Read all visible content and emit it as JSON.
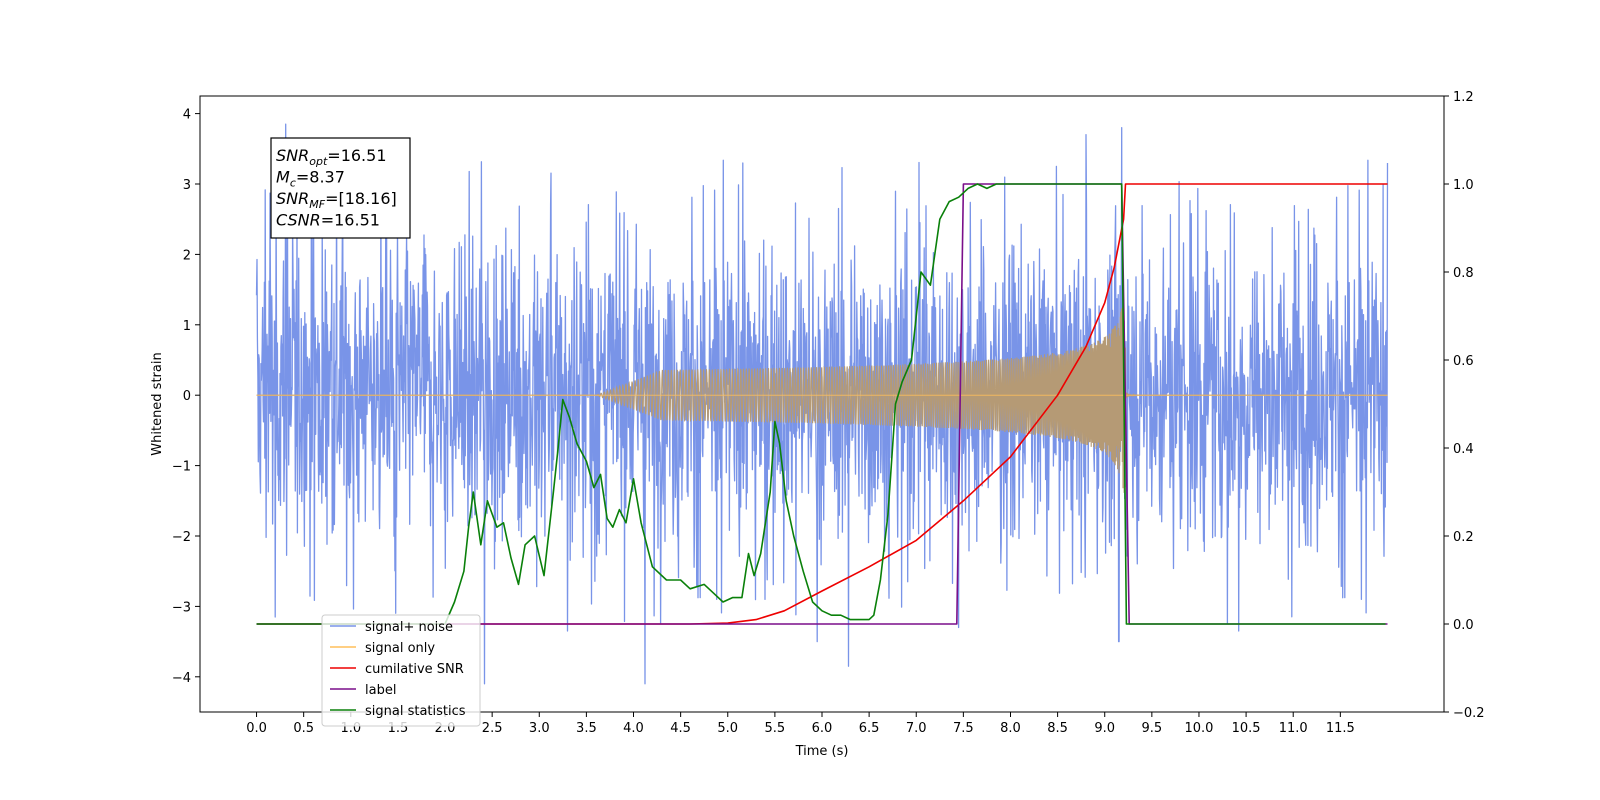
{
  "chart_data": {
    "type": "line",
    "xlabel": "Time (s)",
    "ylabel": "Whitened strain",
    "xlim": [
      -0.6,
      12.6
    ],
    "ylim_left": [
      -4.5,
      4.25
    ],
    "ylim_right": [
      -0.2,
      1.2
    ],
    "xticks": [
      0.0,
      0.5,
      1.0,
      1.5,
      2.0,
      2.5,
      3.0,
      3.5,
      4.0,
      4.5,
      5.0,
      5.5,
      6.0,
      6.5,
      7.0,
      7.5,
      8.0,
      8.5,
      9.0,
      9.5,
      10.0,
      10.5,
      11.0,
      11.5
    ],
    "xtick_labels": [
      "0.0",
      "0.5",
      "1.0",
      "1.5",
      "2.0",
      "2.5",
      "3.0",
      "3.5",
      "4.0",
      "4.5",
      "5.0",
      "5.5",
      "6.0",
      "6.5",
      "7.0",
      "7.5",
      "8.0",
      "8.5",
      "9.0",
      "9.5",
      "10.0",
      "10.5",
      "11.0",
      "11.5"
    ],
    "yticks_left": [
      -4,
      -3,
      -2,
      -1,
      0,
      1,
      2,
      3,
      4
    ],
    "ytick_labels_left": [
      "−4",
      "−3",
      "−2",
      "−1",
      "0",
      "1",
      "2",
      "3",
      "4"
    ],
    "yticks_right": [
      -0.2,
      0.0,
      0.2,
      0.4,
      0.6,
      0.8,
      1.0,
      1.2
    ],
    "ytick_labels_right": [
      "−0.2",
      "0.0",
      "0.2",
      "0.4",
      "0.6",
      "0.8",
      "1.0",
      "1.2"
    ],
    "annotation": [
      {
        "sym": "SNR",
        "sub": "opt",
        "value": "=16.51"
      },
      {
        "sym": "M",
        "sub": "c",
        "value": "=8.37"
      },
      {
        "sym": "SNR",
        "sub": "MF",
        "value": "=[18.16]"
      },
      {
        "sym": "CSNR",
        "sub": "",
        "value": "=16.51"
      }
    ],
    "legend_position": "lower-left",
    "series": [
      {
        "name": "signal+ noise",
        "axis": "left",
        "color": "#7994e8",
        "kind": "noise",
        "x_range": [
          0.0,
          12.0
        ],
        "band": [
          -2.3,
          2.4
        ],
        "extremes": [
          {
            "x": 0.31,
            "y": 3.85
          },
          {
            "x": 4.12,
            "y": -4.1
          },
          {
            "x": 2.42,
            "y": -4.1
          },
          {
            "x": 6.28,
            "y": -3.85
          },
          {
            "x": 9.18,
            "y": 3.8
          },
          {
            "x": 8.8,
            "y": 3.7
          },
          {
            "x": 9.15,
            "y": -3.5
          },
          {
            "x": 3.3,
            "y": -3.35
          },
          {
            "x": 0.2,
            "y": -3.15
          },
          {
            "x": 5.95,
            "y": -3.5
          },
          {
            "x": 10.42,
            "y": -3.35
          },
          {
            "x": 7.45,
            "y": -3.3
          }
        ]
      },
      {
        "name": "signal only",
        "axis": "left",
        "color": "#ffbf5a",
        "kind": "chirp",
        "x_range": [
          0.0,
          12.0
        ],
        "merger_time": 9.22,
        "peak_amplitude": 1.4
      },
      {
        "name": "cumilative SNR",
        "axis": "right",
        "color": "#ee0000",
        "x": [
          0.0,
          4.6,
          5.0,
          5.3,
          5.6,
          6.0,
          6.5,
          7.0,
          7.5,
          8.0,
          8.5,
          8.8,
          9.0,
          9.1,
          9.2,
          9.22,
          12.0
        ],
        "y": [
          0.0,
          0.0,
          0.002,
          0.01,
          0.03,
          0.075,
          0.13,
          0.19,
          0.28,
          0.38,
          0.52,
          0.63,
          0.73,
          0.81,
          0.92,
          1.0,
          1.0
        ]
      },
      {
        "name": "label",
        "axis": "right",
        "color": "#7a0f8a",
        "x": [
          0.0,
          7.43,
          7.5,
          9.18,
          9.26,
          12.0
        ],
        "y": [
          0.0,
          0.0,
          1.0,
          1.0,
          0.0,
          0.0
        ]
      },
      {
        "name": "signal statistics",
        "axis": "right",
        "color": "#0a800a",
        "x": [
          0.0,
          2.0,
          2.1,
          2.2,
          2.25,
          2.3,
          2.38,
          2.45,
          2.55,
          2.62,
          2.7,
          2.78,
          2.85,
          2.95,
          3.05,
          3.15,
          3.2,
          3.25,
          3.32,
          3.4,
          3.5,
          3.58,
          3.65,
          3.72,
          3.78,
          3.85,
          3.92,
          4.0,
          4.08,
          4.2,
          4.35,
          4.5,
          4.6,
          4.75,
          4.85,
          4.95,
          5.05,
          5.15,
          5.22,
          5.28,
          5.35,
          5.45,
          5.5,
          5.55,
          5.62,
          5.7,
          5.8,
          5.9,
          6.0,
          6.1,
          6.2,
          6.3,
          6.4,
          6.5,
          6.55,
          6.62,
          6.7,
          6.78,
          6.85,
          6.95,
          7.05,
          7.15,
          7.25,
          7.35,
          7.45,
          7.55,
          7.65,
          7.75,
          7.85,
          7.95,
          8.05,
          8.15,
          8.3,
          9.0,
          9.18,
          9.23,
          9.3,
          11.98
        ],
        "y": [
          0.0,
          0.0,
          0.05,
          0.12,
          0.22,
          0.3,
          0.18,
          0.28,
          0.22,
          0.23,
          0.15,
          0.09,
          0.18,
          0.2,
          0.11,
          0.3,
          0.4,
          0.51,
          0.47,
          0.41,
          0.37,
          0.31,
          0.34,
          0.24,
          0.22,
          0.26,
          0.23,
          0.33,
          0.23,
          0.13,
          0.1,
          0.1,
          0.08,
          0.09,
          0.07,
          0.05,
          0.06,
          0.06,
          0.16,
          0.11,
          0.16,
          0.3,
          0.46,
          0.41,
          0.28,
          0.2,
          0.12,
          0.05,
          0.03,
          0.02,
          0.02,
          0.01,
          0.01,
          0.01,
          0.02,
          0.1,
          0.25,
          0.5,
          0.55,
          0.6,
          0.8,
          0.77,
          0.92,
          0.96,
          0.97,
          0.99,
          1.0,
          0.99,
          1.0,
          1.0,
          1.0,
          1.0,
          1.0,
          1.0,
          1.0,
          0.0,
          0.0,
          0.0
        ]
      }
    ],
    "legend": [
      "signal+ noise",
      "signal only",
      "cumilative SNR",
      "label",
      "signal statistics"
    ]
  }
}
